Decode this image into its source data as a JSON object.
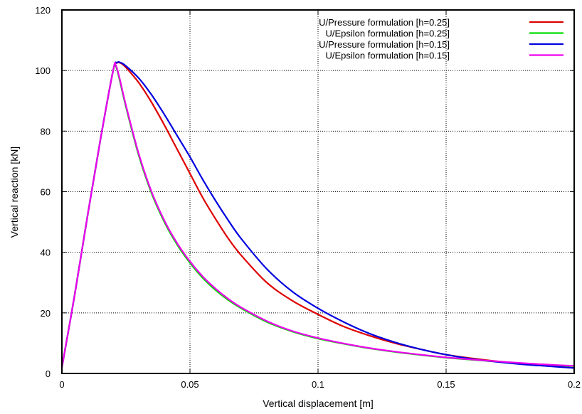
{
  "chart_data": {
    "type": "line",
    "title": "",
    "xlabel": "Vertical displacement [m]",
    "ylabel": "Vertical reaction [kN]",
    "xlim": [
      0,
      0.2
    ],
    "ylim": [
      0,
      120
    ],
    "xticks": [
      0,
      0.05,
      0.1,
      0.15,
      0.2
    ],
    "xtick_labels": [
      "0",
      "0.05",
      "0.1",
      "0.15",
      "0.2"
    ],
    "yticks": [
      0,
      20,
      40,
      60,
      80,
      100,
      120
    ],
    "ytick_labels": [
      "0",
      "20",
      "40",
      "60",
      "80",
      "100",
      "120"
    ],
    "grid": true,
    "legend_position": "top-right",
    "series": [
      {
        "name": "U/Pressure formulation [h=0.25]",
        "color": "#e00000",
        "x": [
          0,
          0.005,
          0.01,
          0.015,
          0.02,
          0.0215,
          0.023,
          0.025,
          0.03,
          0.035,
          0.04,
          0.045,
          0.05,
          0.055,
          0.06,
          0.065,
          0.07,
          0.08,
          0.09,
          0.1,
          0.11,
          0.12,
          0.13,
          0.14,
          0.15,
          0.16,
          0.17,
          0.18,
          0.19,
          0.2
        ],
        "y": [
          2,
          26,
          52,
          77,
          100,
          102.5,
          102.4,
          101,
          96,
          89.5,
          82,
          74,
          66,
          58,
          51,
          44.5,
          39,
          30,
          24,
          19.5,
          15.5,
          12.5,
          10,
          8,
          6.2,
          5,
          4,
          3.2,
          2.5,
          1.8
        ]
      },
      {
        "name": "U/Epsilon formulation [h=0.25]",
        "color": "#00dd00",
        "x": [
          0,
          0.005,
          0.01,
          0.015,
          0.02,
          0.021,
          0.0225,
          0.025,
          0.03,
          0.035,
          0.04,
          0.045,
          0.05,
          0.055,
          0.06,
          0.065,
          0.07,
          0.08,
          0.09,
          0.1,
          0.11,
          0.12,
          0.13,
          0.14,
          0.15,
          0.16,
          0.17,
          0.18,
          0.19,
          0.2
        ],
        "y": [
          2,
          26,
          52,
          77,
          100,
          101.5,
          97,
          88,
          72,
          59.5,
          50,
          42.5,
          36.5,
          31.5,
          27.5,
          24.2,
          21.5,
          17,
          13.8,
          11.5,
          9.8,
          8.3,
          7.1,
          6.1,
          5.2,
          4.5,
          3.9,
          3.3,
          2.8,
          2.4
        ]
      },
      {
        "name": "U/Pressure formulation [h=0.15]",
        "color": "#0000e0",
        "x": [
          0,
          0.005,
          0.01,
          0.015,
          0.02,
          0.0215,
          0.023,
          0.025,
          0.03,
          0.035,
          0.04,
          0.045,
          0.05,
          0.055,
          0.06,
          0.065,
          0.07,
          0.08,
          0.09,
          0.1,
          0.11,
          0.12,
          0.13,
          0.14,
          0.15,
          0.16,
          0.17,
          0.18,
          0.19,
          0.2
        ],
        "y": [
          2,
          26,
          52,
          77,
          100,
          102.6,
          102.6,
          101.5,
          97.5,
          92,
          85.5,
          78.5,
          71.5,
          64,
          57,
          50.5,
          44.5,
          34.5,
          27,
          21.5,
          17,
          13.2,
          10.3,
          8,
          6.2,
          4.8,
          3.8,
          3,
          2.4,
          1.8
        ]
      },
      {
        "name": "U/Epsilon formulation [h=0.15]",
        "color": "#ee00ee",
        "x": [
          0,
          0.005,
          0.01,
          0.015,
          0.02,
          0.021,
          0.0225,
          0.025,
          0.03,
          0.035,
          0.04,
          0.045,
          0.05,
          0.055,
          0.06,
          0.065,
          0.07,
          0.08,
          0.09,
          0.1,
          0.11,
          0.12,
          0.13,
          0.14,
          0.15,
          0.16,
          0.17,
          0.18,
          0.19,
          0.2
        ],
        "y": [
          2,
          26,
          52,
          77,
          100,
          101.8,
          97.5,
          88.5,
          72.5,
          60,
          50.5,
          43,
          37,
          32,
          28,
          24.6,
          21.8,
          17.3,
          14,
          11.7,
          9.9,
          8.4,
          7.2,
          6.2,
          5.3,
          4.6,
          4,
          3.4,
          2.9,
          2.5
        ]
      }
    ]
  }
}
